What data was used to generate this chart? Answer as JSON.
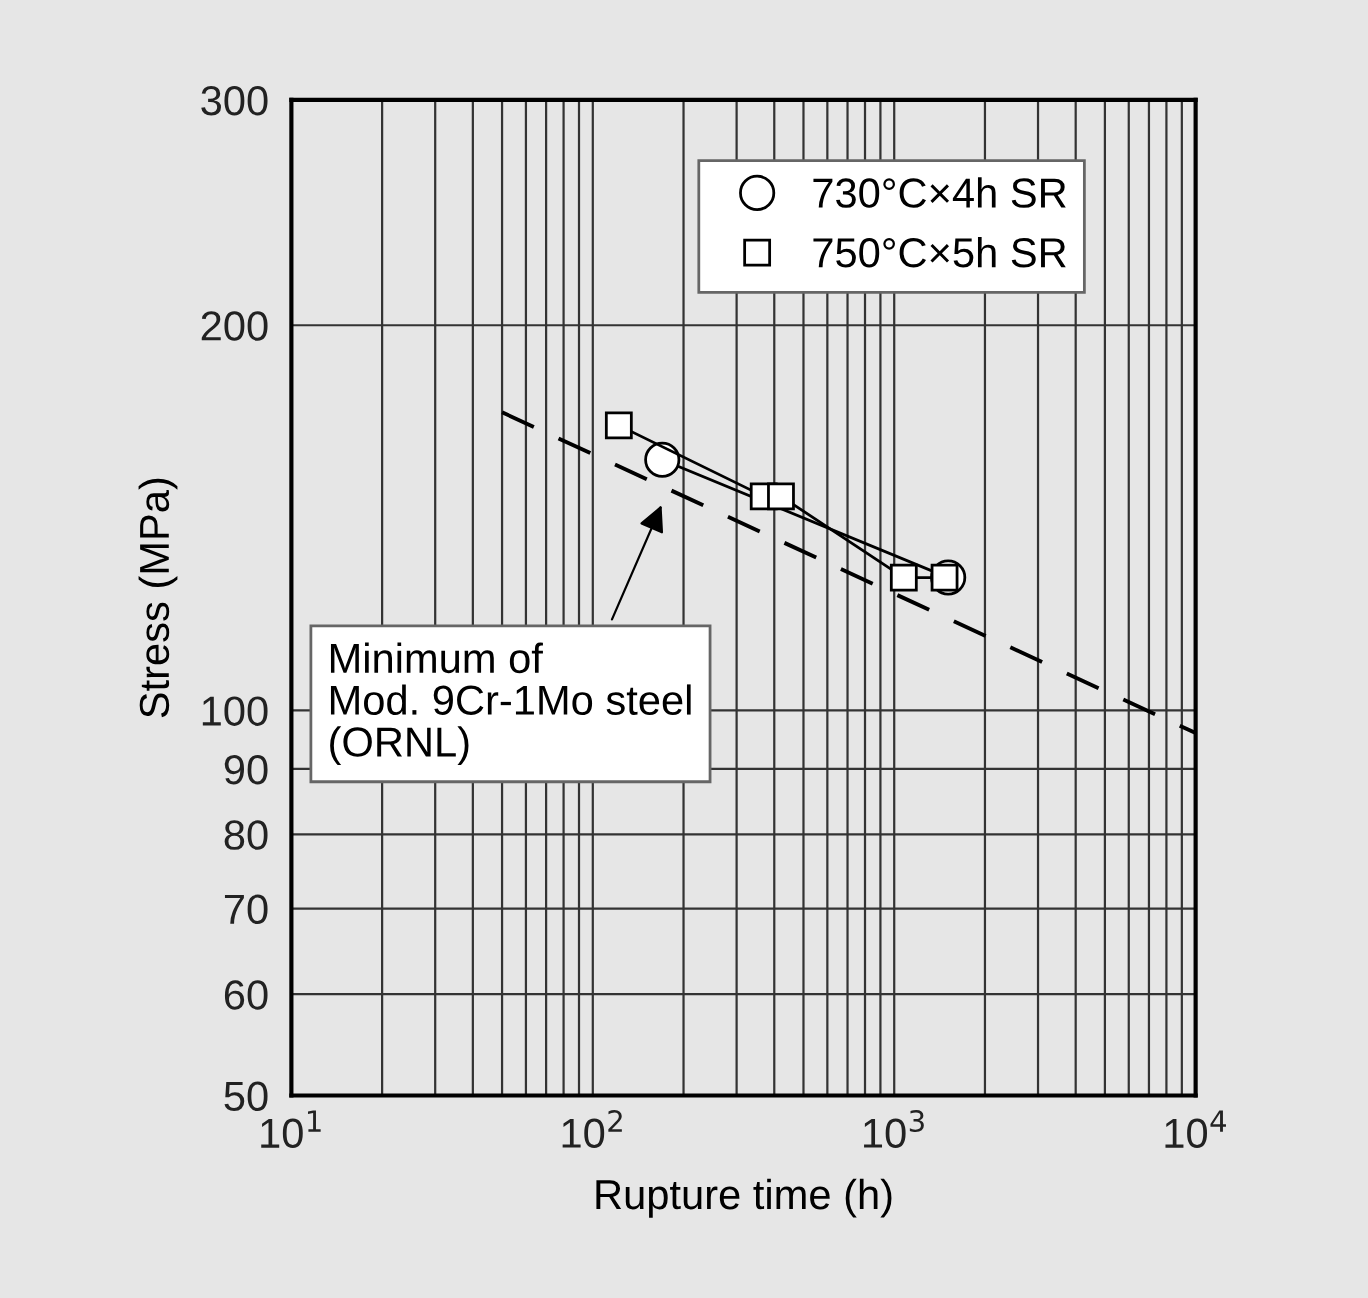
{
  "chart_data": {
    "type": "line",
    "xlabel": "Rupture time (h)",
    "ylabel": "Stress (MPa)",
    "log": "xy",
    "grid": true,
    "legend": "top right",
    "xlim": [
      10,
      10000
    ],
    "ylim": [
      50,
      300
    ],
    "xticks": [
      {
        "value": 10,
        "label": "10$^{1}$"
      },
      {
        "value": 20,
        "label": null
      },
      {
        "value": 30,
        "label": null
      },
      {
        "value": 40,
        "label": null
      },
      {
        "value": 50,
        "label": null
      },
      {
        "value": 60,
        "label": null
      },
      {
        "value": 70,
        "label": null
      },
      {
        "value": 80,
        "label": null
      },
      {
        "value": 90,
        "label": null
      },
      {
        "value": 100,
        "label": "10$^{2}$"
      },
      {
        "value": 200,
        "label": null
      },
      {
        "value": 300,
        "label": null
      },
      {
        "value": 400,
        "label": null
      },
      {
        "value": 500,
        "label": null
      },
      {
        "value": 600,
        "label": null
      },
      {
        "value": 700,
        "label": null
      },
      {
        "value": 800,
        "label": null
      },
      {
        "value": 900,
        "label": null
      },
      {
        "value": 1000,
        "label": "10$^{3}$"
      },
      {
        "value": 2000,
        "label": null
      },
      {
        "value": 3000,
        "label": null
      },
      {
        "value": 4000,
        "label": null
      },
      {
        "value": 5000,
        "label": null
      },
      {
        "value": 6000,
        "label": null
      },
      {
        "value": 7000,
        "label": null
      },
      {
        "value": 8000,
        "label": null
      },
      {
        "value": 9000,
        "label": null
      },
      {
        "value": 10000,
        "label": "10$^{4}$"
      }
    ],
    "yticks": [
      50,
      60,
      70,
      80,
      90,
      100,
      200,
      300
    ],
    "series": [
      {
        "name": "730°C×4h SR",
        "color": "#000000",
        "marker": "circle",
        "line_style": "solid",
        "x": [
          170,
          1510
        ],
        "values": [
          157,
          127
        ]
      },
      {
        "name": "750°C×5h SR",
        "color": "#000000",
        "marker": "square",
        "line_style": "solid",
        "x": [
          122,
          369,
          421,
          1076,
          1469
        ],
        "values": [
          167,
          147,
          147,
          127,
          127
        ]
      },
      {
        "color": "#000000",
        "marker": "none",
        "line_style": "dashed",
        "x": [
          50,
          10000
        ],
        "values": [
          171,
          96
        ]
      }
    ],
    "annotations": [
      {
        "text": "Minimum of\nMod. 9Cr-1Mo steel\n(ORNL)",
        "x": 172,
        "y": 146
      }
    ]
  }
}
